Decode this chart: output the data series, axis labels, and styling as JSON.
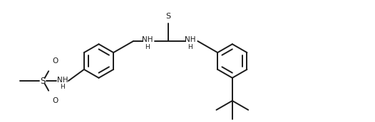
{
  "bg_color": "#ffffff",
  "line_color": "#1a1a1a",
  "line_width": 1.4,
  "figsize": [
    5.26,
    1.72
  ],
  "dpi": 100,
  "ring_r": 0.48,
  "xlim": [
    0,
    10.52
  ],
  "ylim": [
    0,
    3.44
  ]
}
